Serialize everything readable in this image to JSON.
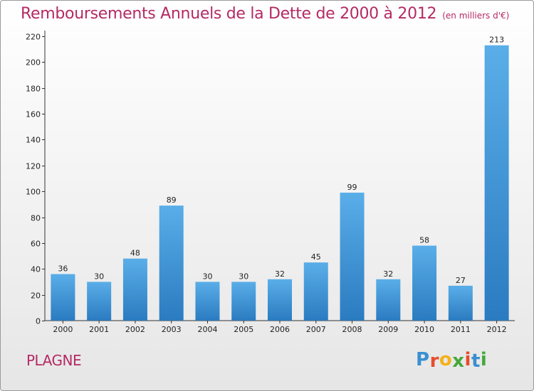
{
  "chart_data": {
    "type": "bar",
    "title": "Remboursements Annuels de la Dette de 2000 à 2012",
    "subtitle": "(en milliers d'€)",
    "categories": [
      "2000",
      "2001",
      "2002",
      "2003",
      "2004",
      "2005",
      "2006",
      "2007",
      "2008",
      "2009",
      "2010",
      "2011",
      "2012"
    ],
    "values": [
      36,
      30,
      48,
      89,
      30,
      30,
      32,
      45,
      99,
      32,
      58,
      27,
      213
    ],
    "ylim": [
      0,
      220
    ],
    "yticks": [
      0,
      20,
      40,
      60,
      80,
      100,
      120,
      140,
      160,
      180,
      200,
      220
    ],
    "grid": false,
    "bar_color_light": "#5aaee8",
    "bar_color_dark": "#2a7bc0"
  },
  "commune": "PLAGNE",
  "logo": {
    "text": "Proxiti",
    "colors": [
      "#3a8fd1",
      "#e84c2e",
      "#f2b21a",
      "#45a83a",
      "#e84c2e",
      "#3a8fd1",
      "#45a83a"
    ]
  }
}
